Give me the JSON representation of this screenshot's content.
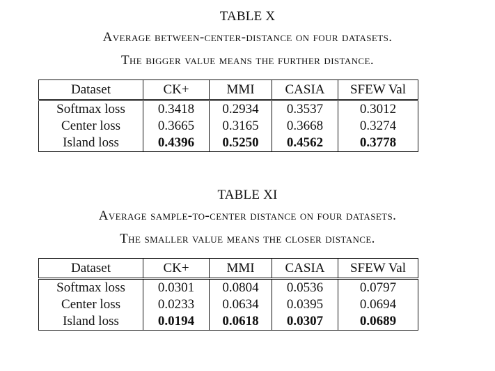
{
  "tables": [
    {
      "label": "TABLE X",
      "caption_line1": "Average between-center-distance on four datasets.",
      "caption_line2": "The bigger value means the further distance.",
      "headers": [
        "Dataset",
        "CK+",
        "MMI",
        "CASIA",
        "SFEW Val"
      ],
      "rows": [
        {
          "name": "Softmax loss",
          "values": [
            "0.3418",
            "0.2934",
            "0.3537",
            "0.3012"
          ],
          "bold": false
        },
        {
          "name": "Center loss",
          "values": [
            "0.3665",
            "0.3165",
            "0.3668",
            "0.3274"
          ],
          "bold": false
        },
        {
          "name": "Island loss",
          "values": [
            "0.4396",
            "0.5250",
            "0.4562",
            "0.3778"
          ],
          "bold": true
        }
      ]
    },
    {
      "label": "TABLE XI",
      "caption_line1": "Average sample-to-center distance on four datasets.",
      "caption_line2": "The smaller value means the closer distance.",
      "headers": [
        "Dataset",
        "CK+",
        "MMI",
        "CASIA",
        "SFEW Val"
      ],
      "rows": [
        {
          "name": "Softmax loss",
          "values": [
            "0.0301",
            "0.0804",
            "0.0536",
            "0.0797"
          ],
          "bold": false
        },
        {
          "name": "Center loss",
          "values": [
            "0.0233",
            "0.0634",
            "0.0395",
            "0.0694"
          ],
          "bold": false
        },
        {
          "name": "Island loss",
          "values": [
            "0.0194",
            "0.0618",
            "0.0307",
            "0.0689"
          ],
          "bold": true
        }
      ]
    }
  ]
}
